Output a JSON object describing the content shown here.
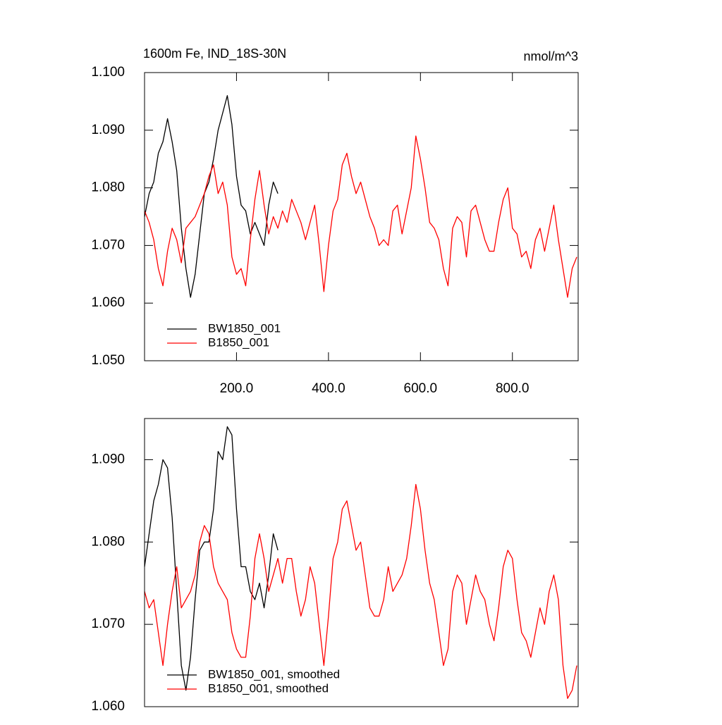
{
  "chart_data": [
    {
      "type": "line",
      "title": "1600m Fe, IND_18S-30N",
      "units": "nmol/m^3",
      "x": [
        0,
        10,
        20,
        30,
        40,
        50,
        60,
        70,
        80,
        90,
        100,
        110,
        120,
        130,
        140,
        150,
        160,
        170,
        180,
        190,
        200,
        210,
        220,
        230,
        240,
        250,
        260,
        270,
        280,
        290,
        300,
        310,
        320,
        330,
        340,
        350,
        360,
        370,
        380,
        390,
        400,
        410,
        420,
        430,
        440,
        450,
        460,
        470,
        480,
        490,
        500,
        510,
        520,
        530,
        540,
        550,
        560,
        570,
        580,
        590,
        600,
        610,
        620,
        630,
        640,
        650,
        660,
        670,
        680,
        690,
        700,
        710,
        720,
        730,
        740,
        750,
        760,
        770,
        780,
        790,
        800,
        810,
        820,
        830,
        840,
        850,
        860,
        870,
        880,
        890,
        900,
        910,
        920,
        930,
        940
      ],
      "series": [
        {
          "name": "BW1850_001",
          "color": "#000000",
          "values": [
            1.075,
            1.079,
            1.081,
            1.086,
            1.088,
            1.092,
            1.088,
            1.083,
            1.073,
            1.066,
            1.061,
            1.065,
            1.072,
            1.079,
            1.081,
            1.085,
            1.09,
            1.093,
            1.096,
            1.091,
            1.082,
            1.077,
            1.076,
            1.072,
            1.074,
            1.072,
            1.07,
            1.077,
            1.081,
            1.079,
            null,
            null,
            null,
            null,
            null,
            null,
            null,
            null,
            null,
            null,
            null,
            null,
            null,
            null,
            null,
            null,
            null,
            null,
            null,
            null,
            null,
            null,
            null,
            null,
            null,
            null,
            null,
            null,
            null,
            null,
            null,
            null,
            null,
            null,
            null,
            null,
            null,
            null,
            null,
            null,
            null,
            null,
            null,
            null,
            null,
            null,
            null,
            null,
            null,
            null,
            null,
            null,
            null,
            null,
            null,
            null,
            null,
            null,
            null,
            null,
            null,
            null,
            null,
            null,
            null
          ]
        },
        {
          "name": "B1850_001",
          "color": "#ff0000",
          "values": [
            1.076,
            1.074,
            1.071,
            1.066,
            1.063,
            1.069,
            1.073,
            1.071,
            1.067,
            1.073,
            1.074,
            1.075,
            1.077,
            1.079,
            1.082,
            1.084,
            1.079,
            1.081,
            1.077,
            1.068,
            1.065,
            1.066,
            1.063,
            1.071,
            1.078,
            1.083,
            1.077,
            1.072,
            1.075,
            1.073,
            1.076,
            1.074,
            1.078,
            1.076,
            1.074,
            1.071,
            1.074,
            1.077,
            1.07,
            1.062,
            1.07,
            1.076,
            1.078,
            1.084,
            1.086,
            1.082,
            1.079,
            1.081,
            1.078,
            1.075,
            1.073,
            1.07,
            1.071,
            1.07,
            1.076,
            1.077,
            1.072,
            1.076,
            1.08,
            1.089,
            1.085,
            1.08,
            1.074,
            1.073,
            1.071,
            1.066,
            1.063,
            1.073,
            1.075,
            1.074,
            1.068,
            1.076,
            1.077,
            1.074,
            1.071,
            1.069,
            1.069,
            1.074,
            1.078,
            1.08,
            1.073,
            1.072,
            1.068,
            1.069,
            1.066,
            1.071,
            1.073,
            1.069,
            1.073,
            1.077,
            1.071,
            1.066,
            1.061,
            1.066,
            1.068
          ]
        }
      ],
      "xlim": [
        0,
        943
      ],
      "xticks": [
        {
          "value": 200,
          "label": "200.0"
        },
        {
          "value": 400,
          "label": "400.0"
        },
        {
          "value": 600,
          "label": "600.0"
        },
        {
          "value": 800,
          "label": "800.0"
        }
      ],
      "ylim": [
        1.05,
        1.1
      ],
      "yticks": [
        {
          "value": 1.05,
          "label": "1.050"
        },
        {
          "value": 1.06,
          "label": "1.060"
        },
        {
          "value": 1.07,
          "label": "1.070"
        },
        {
          "value": 1.08,
          "label": "1.080"
        },
        {
          "value": 1.09,
          "label": "1.090"
        },
        {
          "value": 1.1,
          "label": "1.100"
        }
      ],
      "legend": "lower left"
    },
    {
      "type": "line",
      "x": [
        0,
        10,
        20,
        30,
        40,
        50,
        60,
        70,
        80,
        90,
        100,
        110,
        120,
        130,
        140,
        150,
        160,
        170,
        180,
        190,
        200,
        210,
        220,
        230,
        240,
        250,
        260,
        270,
        280,
        290,
        300,
        310,
        320,
        330,
        340,
        350,
        360,
        370,
        380,
        390,
        400,
        410,
        420,
        430,
        440,
        450,
        460,
        470,
        480,
        490,
        500,
        510,
        520,
        530,
        540,
        550,
        560,
        570,
        580,
        590,
        600,
        610,
        620,
        630,
        640,
        650,
        660,
        670,
        680,
        690,
        700,
        710,
        720,
        730,
        740,
        750,
        760,
        770,
        780,
        790,
        800,
        810,
        820,
        830,
        840,
        850,
        860,
        870,
        880,
        890,
        900,
        910,
        920,
        930,
        940
      ],
      "series": [
        {
          "name": "BW1850_001, smoothed",
          "color": "#000000",
          "values": [
            1.077,
            1.081,
            1.085,
            1.087,
            1.09,
            1.089,
            1.083,
            1.074,
            1.065,
            1.062,
            1.066,
            1.073,
            1.079,
            1.08,
            1.08,
            1.084,
            1.091,
            1.09,
            1.094,
            1.093,
            1.084,
            1.077,
            1.077,
            1.074,
            1.073,
            1.075,
            1.072,
            1.076,
            1.081,
            1.079,
            null,
            null,
            null,
            null,
            null,
            null,
            null,
            null,
            null,
            null,
            null,
            null,
            null,
            null,
            null,
            null,
            null,
            null,
            null,
            null,
            null,
            null,
            null,
            null,
            null,
            null,
            null,
            null,
            null,
            null,
            null,
            null,
            null,
            null,
            null,
            null,
            null,
            null,
            null,
            null,
            null,
            null,
            null,
            null,
            null,
            null,
            null,
            null,
            null,
            null,
            null,
            null,
            null,
            null,
            null,
            null,
            null,
            null,
            null,
            null,
            null,
            null,
            null,
            null,
            null
          ]
        },
        {
          "name": "B1850_001, smoothed",
          "color": "#ff0000",
          "values": [
            1.074,
            1.072,
            1.073,
            1.069,
            1.065,
            1.07,
            1.074,
            1.077,
            1.072,
            1.073,
            1.074,
            1.076,
            1.08,
            1.082,
            1.081,
            1.077,
            1.075,
            1.074,
            1.073,
            1.069,
            1.067,
            1.066,
            1.066,
            1.071,
            1.078,
            1.081,
            1.078,
            1.074,
            1.076,
            1.078,
            1.075,
            1.078,
            1.078,
            1.074,
            1.071,
            1.073,
            1.077,
            1.075,
            1.07,
            1.065,
            1.071,
            1.078,
            1.08,
            1.084,
            1.085,
            1.082,
            1.079,
            1.08,
            1.076,
            1.072,
            1.071,
            1.071,
            1.073,
            1.077,
            1.074,
            1.075,
            1.076,
            1.078,
            1.082,
            1.087,
            1.084,
            1.079,
            1.075,
            1.073,
            1.069,
            1.065,
            1.067,
            1.074,
            1.076,
            1.075,
            1.07,
            1.073,
            1.076,
            1.074,
            1.073,
            1.07,
            1.068,
            1.072,
            1.077,
            1.079,
            1.078,
            1.073,
            1.069,
            1.068,
            1.066,
            1.069,
            1.072,
            1.07,
            1.074,
            1.076,
            1.073,
            1.065,
            1.061,
            1.062,
            1.065
          ]
        }
      ],
      "xlim": [
        0,
        943
      ],
      "ylim": [
        1.06,
        1.095
      ],
      "yticks": [
        {
          "value": 1.06,
          "label": "1.060"
        },
        {
          "value": 1.07,
          "label": "1.070"
        },
        {
          "value": 1.08,
          "label": "1.080"
        },
        {
          "value": 1.09,
          "label": "1.090"
        }
      ],
      "legend": "lower left"
    }
  ]
}
